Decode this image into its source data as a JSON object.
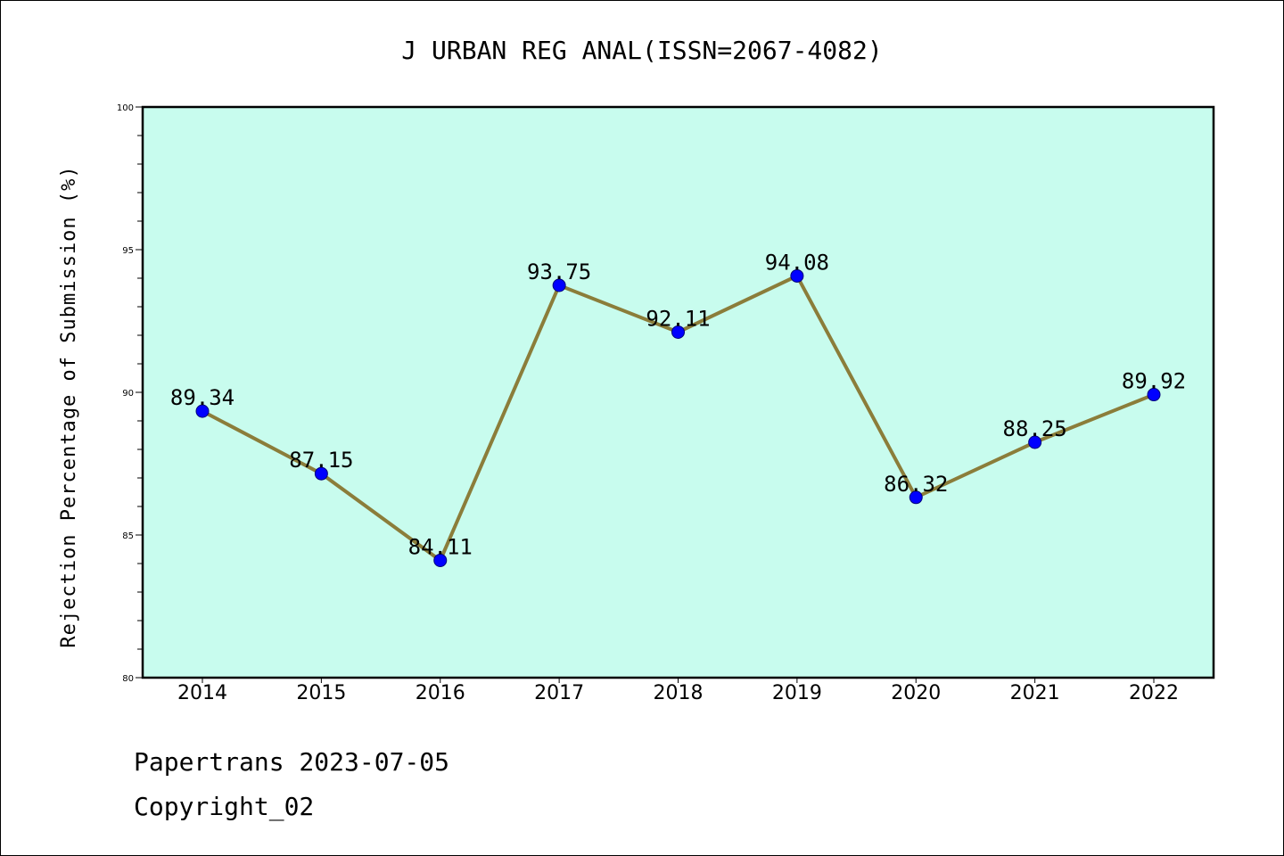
{
  "chart_data": {
    "type": "line",
    "title": "J URBAN REG ANAL(ISSN=2067-4082)",
    "xlabel": "",
    "ylabel": "Rejection Percentage of Submission (%)",
    "categories": [
      "2014",
      "2015",
      "2016",
      "2017",
      "2018",
      "2019",
      "2020",
      "2021",
      "2022"
    ],
    "values": [
      89.34,
      87.15,
      84.11,
      93.75,
      92.11,
      94.08,
      86.32,
      88.25,
      89.92
    ],
    "data_labels": [
      "89.34",
      "87.15",
      "84.11",
      "93.75",
      "92.11",
      "94.08",
      "86.32",
      "88.25",
      "89.92"
    ],
    "ylim": [
      80,
      100
    ],
    "yticks": [
      "80",
      "85",
      "90",
      "95",
      "100"
    ],
    "grid": false,
    "legend": "none",
    "colors": {
      "plot_background": "#c8fcee",
      "line": "#8b7d3a",
      "marker": "#0000ff"
    }
  },
  "footer": {
    "line1": "Papertrans 2023-07-05",
    "line2": "Copyright_02"
  }
}
